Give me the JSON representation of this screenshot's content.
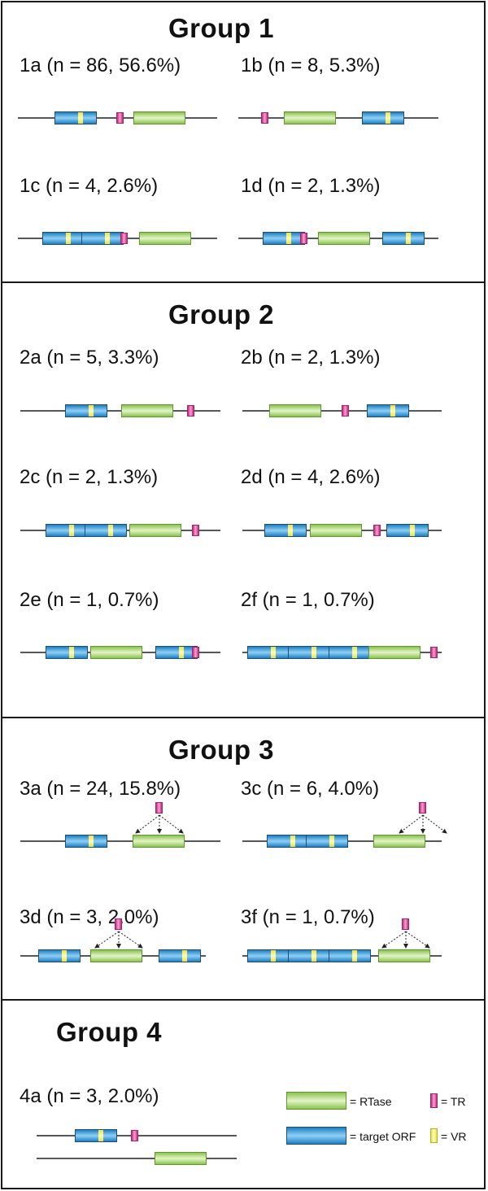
{
  "groups": [
    {
      "title": "Group 1",
      "variants": [
        {
          "label": "1a (n = 86, 56.6%)",
          "elements": [
            "orf",
            "tr",
            "rtase"
          ]
        },
        {
          "label": "1b (n = 8, 5.3%)",
          "elements": [
            "tr",
            "rtase",
            "orf"
          ]
        },
        {
          "label": "1c (n = 4, 2.6%)",
          "elements": [
            "orf",
            "orf",
            "tr",
            "rtase"
          ]
        },
        {
          "label": "1d (n = 2, 1.3%)",
          "elements": [
            "orf",
            "tr",
            "rtase",
            "orf"
          ]
        }
      ]
    },
    {
      "title": "Group 2",
      "variants": [
        {
          "label": "2a (n = 5, 3.3%)",
          "elements": [
            "orf",
            "rtase",
            "tr"
          ]
        },
        {
          "label": "2b (n = 2, 1.3%)",
          "elements": [
            "rtase",
            "tr",
            "orf"
          ]
        },
        {
          "label": "2c (n = 2, 1.3%)",
          "elements": [
            "orf",
            "orf",
            "rtase",
            "tr"
          ]
        },
        {
          "label": "2d (n = 4, 2.6%)",
          "elements": [
            "orf",
            "rtase",
            "tr",
            "orf"
          ]
        },
        {
          "label": "2e (n = 1, 0.7%)",
          "elements": [
            "orf",
            "rtase",
            "orf",
            "tr"
          ]
        },
        {
          "label": "2f (n = 1, 0.7%)",
          "elements": [
            "orf",
            "orf",
            "orf",
            "rtase",
            "tr"
          ]
        }
      ]
    },
    {
      "title": "Group 3",
      "variants": [
        {
          "label": "3a (n = 24, 15.8%)",
          "elements": [
            "orf",
            "rtase+tr"
          ]
        },
        {
          "label": "3c (n = 6, 4.0%)",
          "elements": [
            "orf",
            "orf",
            "rtase+tr"
          ]
        },
        {
          "label": "3d (n = 3, 2.0%)",
          "elements": [
            "orf",
            "rtase+tr",
            "orf"
          ]
        },
        {
          "label": "3f (n = 1, 0.7%)",
          "elements": [
            "orf",
            "orf",
            "orf",
            "rtase+tr"
          ]
        }
      ]
    },
    {
      "title": "Group 4",
      "variants": [
        {
          "label": "4a (n = 3, 2.0%)",
          "elements": [
            "orf",
            "tr",
            "/",
            "rtase"
          ]
        }
      ]
    }
  ],
  "legend": {
    "rtase": "= RTase",
    "tr": "= TR",
    "orf": "= target ORF",
    "vr": "= VR"
  },
  "colors": {
    "rtase": "#8cc24f",
    "orf": "#1e7fc3",
    "tr": "#c4287a",
    "vr": "#e8e24a",
    "track": "#55595c",
    "border": "#1a1a1a"
  }
}
